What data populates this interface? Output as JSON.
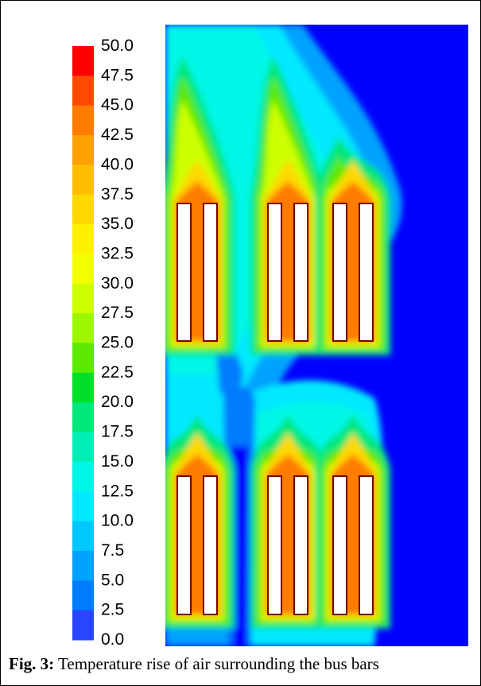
{
  "figure": {
    "caption_label": "Fig. 3:",
    "caption_text": " Temperature rise of air surrounding the bus bars"
  },
  "colorbar": {
    "labels": [
      "50.0",
      "47.5",
      "45.0",
      "42.5",
      "40.0",
      "37.5",
      "35.0",
      "32.5",
      "30.0",
      "27.5",
      "25.0",
      "22.5",
      "20.0",
      "17.5",
      "15.0",
      "12.5",
      "10.0",
      "7.5",
      "5.0",
      "2.5",
      "0.0"
    ],
    "colors": [
      "#ff0000",
      "#ff4a00",
      "#ff7c00",
      "#ff9f00",
      "#ffbe00",
      "#ffd800",
      "#fff000",
      "#f3ff00",
      "#cdff00",
      "#9cf700",
      "#5de800",
      "#00e02a",
      "#00e77a",
      "#00edb5",
      "#00f6e6",
      "#00e9ff",
      "#00c8ff",
      "#00a2ff",
      "#007cff",
      "#2a45ff",
      "#0000ff"
    ]
  },
  "field": {
    "background_color": "#0000ff",
    "busbar_groups": 6,
    "bars_per_group": 2
  }
}
